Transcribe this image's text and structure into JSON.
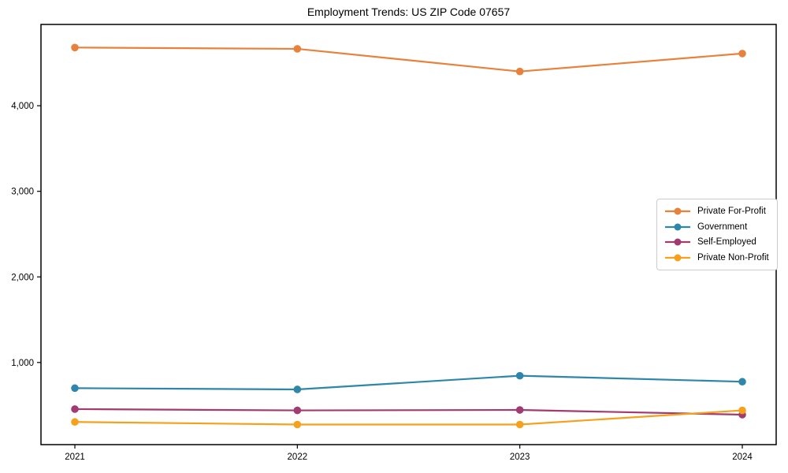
{
  "chart_data": {
    "type": "line",
    "title": "Employment Trends: US ZIP Code 07657",
    "xlabel": "",
    "ylabel": "",
    "grid": false,
    "legend_position": "center right",
    "marker": "circle",
    "categories": [
      "2021",
      "2022",
      "2023",
      "2024"
    ],
    "series": [
      {
        "name": "Private For-Profit",
        "color": "#E8813C",
        "values": [
          4680,
          4665,
          4400,
          4610
        ]
      },
      {
        "name": "Government",
        "color": "#2E86AB",
        "values": [
          700,
          685,
          845,
          775
        ]
      },
      {
        "name": "Self-Employed",
        "color": "#A23B72",
        "values": [
          455,
          440,
          445,
          390
        ]
      },
      {
        "name": "Private Non-Profit",
        "color": "#F5A11B",
        "values": [
          305,
          275,
          275,
          440
        ]
      }
    ],
    "ylim": [
      40,
      4950
    ],
    "ytick_values": [
      1000,
      2000,
      3000,
      4000
    ],
    "ytick_labels": [
      "1,000",
      "2,000",
      "3,000",
      "4,000"
    ],
    "axis_color": "#000000"
  }
}
